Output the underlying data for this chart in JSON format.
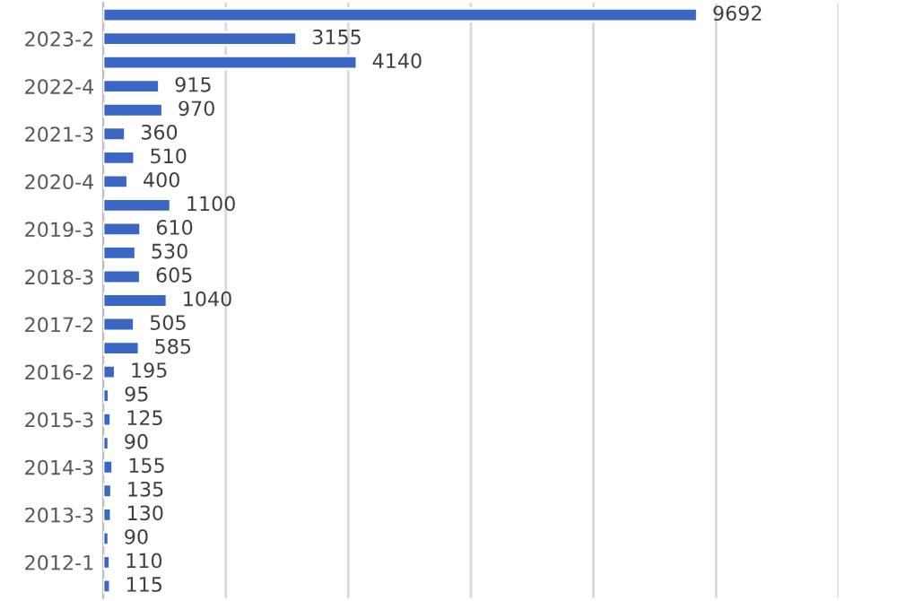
{
  "chart_data": {
    "type": "bar",
    "orientation": "horizontal",
    "categories": [
      null,
      "2023-2",
      null,
      "2022-4",
      null,
      "2021-3",
      null,
      "2020-4",
      null,
      "2019-3",
      null,
      "2018-3",
      null,
      "2017-2",
      null,
      "2016-2",
      null,
      "2015-3",
      null,
      "2014-3",
      null,
      "2013-3",
      null,
      "2012-1",
      null
    ],
    "values": [
      9692,
      3155,
      4140,
      915,
      970,
      360,
      510,
      400,
      1100,
      610,
      530,
      605,
      1040,
      505,
      585,
      195,
      95,
      125,
      90,
      155,
      135,
      130,
      90,
      110,
      115
    ],
    "color": "#3a66c4",
    "xlim": [
      0,
      12000
    ],
    "xticks": [
      {
        "value": 0,
        "label": null
      },
      {
        "value": 2000,
        "label": null
      },
      {
        "value": 4000,
        "label": null
      },
      {
        "value": 6000,
        "label": null
      },
      {
        "value": 8000,
        "label": null
      },
      {
        "value": 10000,
        "label": null
      },
      {
        "value": 12000,
        "label": null
      }
    ],
    "tick_labels": "y",
    "grid": "x",
    "data_labels": true
  }
}
